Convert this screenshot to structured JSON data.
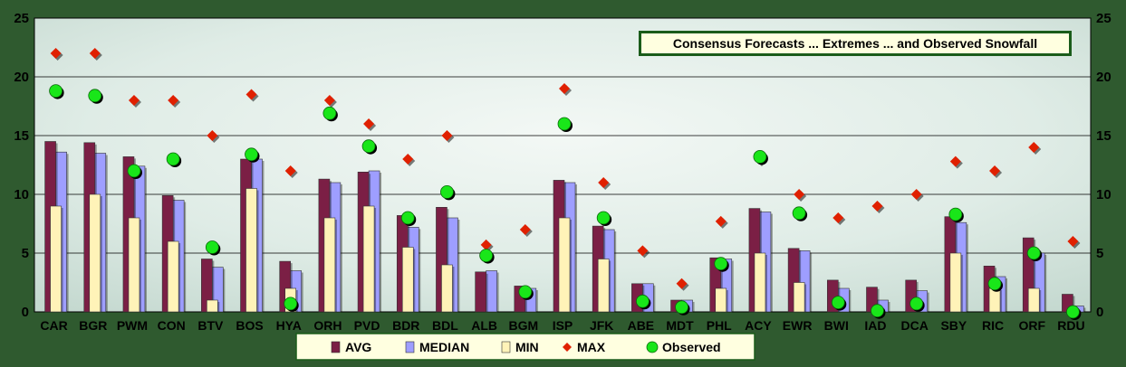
{
  "chart_data": {
    "type": "bar",
    "title": "Consensus Forecasts ... Extremes ... and Observed Snowfall",
    "ylim": [
      0,
      25
    ],
    "yticks": [
      "0",
      "5",
      "10",
      "15",
      "20",
      "25"
    ],
    "grid": true,
    "legend_position": "bottom",
    "categories": [
      "CAR",
      "BGR",
      "PWM",
      "CON",
      "BTV",
      "BOS",
      "HYA",
      "ORH",
      "PVD",
      "BDR",
      "BDL",
      "ALB",
      "BGM",
      "ISP",
      "JFK",
      "ABE",
      "MDT",
      "PHL",
      "ACY",
      "EWR",
      "BWI",
      "IAD",
      "DCA",
      "SBY",
      "RIC",
      "ORF",
      "RDU"
    ],
    "series": [
      {
        "name": "AVG",
        "kind": "bar",
        "color": "#7b1f45",
        "values": [
          14.5,
          14.4,
          13.2,
          9.9,
          4.5,
          13.0,
          4.3,
          11.3,
          11.9,
          8.2,
          8.9,
          3.4,
          2.2,
          11.2,
          7.3,
          2.4,
          1.0,
          4.6,
          8.8,
          5.4,
          2.7,
          2.1,
          2.7,
          8.1,
          3.9,
          6.3,
          1.5
        ]
      },
      {
        "name": "MEDIAN",
        "kind": "bar",
        "color": "#9e9eff",
        "values": [
          13.6,
          13.5,
          12.4,
          9.5,
          3.8,
          13.0,
          3.5,
          11.0,
          12.0,
          7.2,
          8.0,
          3.5,
          2.0,
          11.0,
          7.0,
          2.4,
          1.0,
          4.5,
          8.5,
          5.2,
          2.0,
          1.0,
          1.8,
          7.6,
          3.0,
          5.0,
          0.5
        ]
      },
      {
        "name": "MIN",
        "kind": "bar",
        "color": "#fff3b8",
        "values": [
          9.0,
          10.0,
          8.0,
          6.0,
          1.0,
          10.5,
          2.0,
          8.0,
          9.0,
          5.5,
          4.0,
          0,
          0,
          8.0,
          4.5,
          0,
          0,
          2.0,
          5.0,
          2.5,
          0,
          0,
          0,
          5.0,
          2.0,
          2.0,
          0
        ]
      },
      {
        "name": "MAX",
        "kind": "marker",
        "color": "#e02000",
        "values": [
          22,
          22,
          18,
          18,
          15,
          18.5,
          12,
          18,
          16,
          13,
          15,
          5.7,
          7,
          19,
          11,
          5.2,
          2.4,
          7.7,
          13,
          10,
          8,
          9,
          10,
          12.8,
          12,
          14,
          6
        ]
      },
      {
        "name": "Observed",
        "kind": "marker",
        "color": "#19e619",
        "values": [
          18.8,
          18.4,
          12.0,
          13.0,
          5.5,
          13.4,
          0.7,
          16.9,
          14.1,
          8.0,
          10.2,
          4.8,
          1.7,
          16.0,
          8.0,
          0.9,
          0.4,
          4.1,
          13.2,
          8.4,
          0.8,
          0.1,
          0.7,
          8.3,
          2.4,
          5.0,
          0.0
        ]
      }
    ]
  }
}
